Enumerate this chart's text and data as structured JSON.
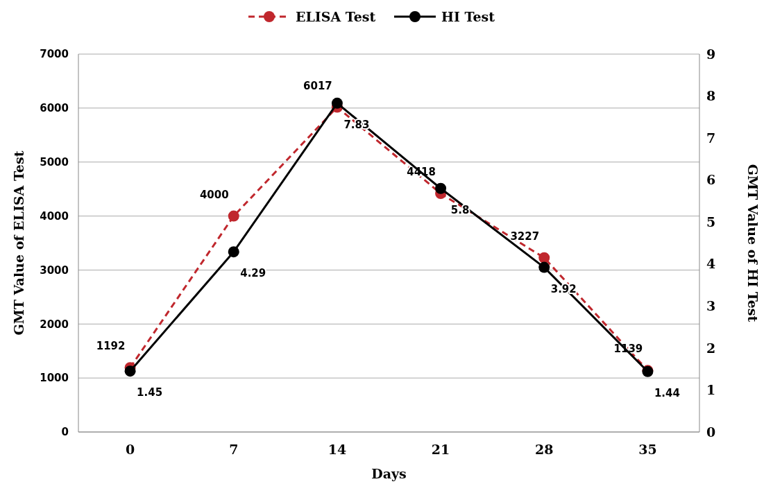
{
  "chart_data": {
    "type": "line",
    "xlabel": "Days",
    "ylabel": "GMT Value of ELISA Test",
    "y2label": "GMT Value of HI Test",
    "categories": [
      "0",
      "7",
      "14",
      "21",
      "28",
      "35"
    ],
    "series": [
      {
        "name": "ELISA Test",
        "color": "#c0272d",
        "line_style": "dashed",
        "values": [
          1192,
          4000,
          6017,
          4418,
          3227,
          1139
        ]
      },
      {
        "name": "HI Test",
        "color": "#000000",
        "line_style": "solid",
        "axis": "y2",
        "values": [
          1.45,
          4.29,
          7.83,
          5.8,
          3.92,
          1.44
        ]
      }
    ],
    "ylim": [
      0,
      7000
    ],
    "yticks": [
      0,
      1000,
      2000,
      3000,
      4000,
      5000,
      6000,
      7000
    ],
    "y2lim": [
      0,
      9
    ],
    "y2ticks": [
      0,
      1,
      2,
      3,
      4,
      5,
      6,
      7,
      8,
      9
    ],
    "grid": "y",
    "legend": "top",
    "marker": "circle",
    "data_labels": true
  }
}
